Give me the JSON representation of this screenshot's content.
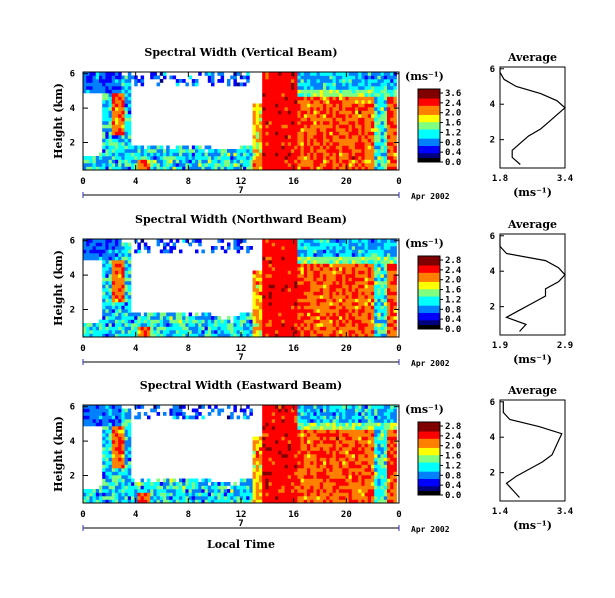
{
  "panels": [
    {
      "title": "Spectral Width (Vertical Beam)",
      "ylabel": "Height (km)",
      "colorbar_unit": "(ms⁻¹)",
      "colorbar_ticks": [
        "3.6",
        "2.4",
        "2.0",
        "1.6",
        "1.2",
        "0.8",
        "0.4",
        "0.0"
      ],
      "date_label": "Apr 2002",
      "day_label": "7",
      "avg_title": "Average",
      "avg_xticks": [
        "1.8",
        "3.4"
      ],
      "avg_unit": "(ms⁻¹)"
    },
    {
      "title": "Spectral Width (Northward Beam)",
      "ylabel": "Height (km)",
      "colorbar_unit": "(ms⁻¹)",
      "colorbar_ticks": [
        "2.8",
        "2.4",
        "2.0",
        "1.6",
        "1.2",
        "0.8",
        "0.4",
        "0.0"
      ],
      "date_label": "Apr 2002",
      "day_label": "7",
      "avg_title": "Average",
      "avg_xticks": [
        "1.9",
        "2.9"
      ],
      "avg_unit": "(ms⁻¹)"
    },
    {
      "title": "Spectral Width (Eastward Beam)",
      "ylabel": "Height (km)",
      "colorbar_unit": "(ms⁻¹)",
      "colorbar_ticks": [
        "2.8",
        "2.4",
        "2.0",
        "1.6",
        "1.2",
        "0.8",
        "0.4",
        "0.0"
      ],
      "date_label": "Apr 2002",
      "day_label": "7",
      "avg_title": "Average",
      "avg_xticks": [
        "1.4",
        "3.4"
      ],
      "avg_unit": "(ms⁻¹)"
    }
  ],
  "bottom_xlabel": "Local Time",
  "chart_data": {
    "type": "heatmap",
    "x_ticks": [
      "0",
      "4",
      "8",
      "12",
      "16",
      "20",
      "0"
    ],
    "y_ticks": [
      "6",
      "4",
      "2"
    ],
    "avg_y_ticks": [
      "6",
      "4",
      "2"
    ],
    "xlim_hours": [
      0,
      24
    ],
    "ylim_km": [
      0.4,
      6.1
    ],
    "color_scale": [
      "#000080",
      "#0000ff",
      "#0080ff",
      "#00ffff",
      "#80ff80",
      "#ffff00",
      "#ff8000",
      "#ff0000",
      "#800000"
    ],
    "average_profiles": [
      {
        "height_km": [
          0.6,
          1.0,
          1.4,
          1.8,
          2.2,
          2.6,
          3.0,
          3.4,
          3.8,
          4.2,
          4.6,
          5.0,
          5.4,
          5.8,
          6.0
        ],
        "width": [
          2.3,
          2.1,
          2.1,
          2.3,
          2.5,
          2.8,
          3.0,
          3.2,
          3.4,
          3.2,
          2.8,
          2.2,
          1.9,
          1.8,
          1.8
        ]
      },
      {
        "height_km": [
          0.6,
          1.0,
          1.4,
          1.8,
          2.2,
          2.6,
          3.0,
          3.4,
          3.8,
          4.2,
          4.6,
          5.0,
          5.4,
          5.8,
          6.0
        ],
        "width": [
          2.2,
          2.3,
          2.0,
          2.2,
          2.4,
          2.6,
          2.6,
          2.8,
          2.9,
          2.8,
          2.6,
          2.0,
          1.9,
          1.9,
          1.9
        ]
      },
      {
        "height_km": [
          0.6,
          1.0,
          1.4,
          1.8,
          2.2,
          2.6,
          3.0,
          3.4,
          3.8,
          4.2,
          4.6,
          5.0,
          5.4,
          5.8,
          6.0
        ],
        "width": [
          2.0,
          1.8,
          1.6,
          1.9,
          2.3,
          2.7,
          3.0,
          3.1,
          3.2,
          3.3,
          2.6,
          1.7,
          1.5,
          1.5,
          1.5
        ]
      }
    ]
  }
}
